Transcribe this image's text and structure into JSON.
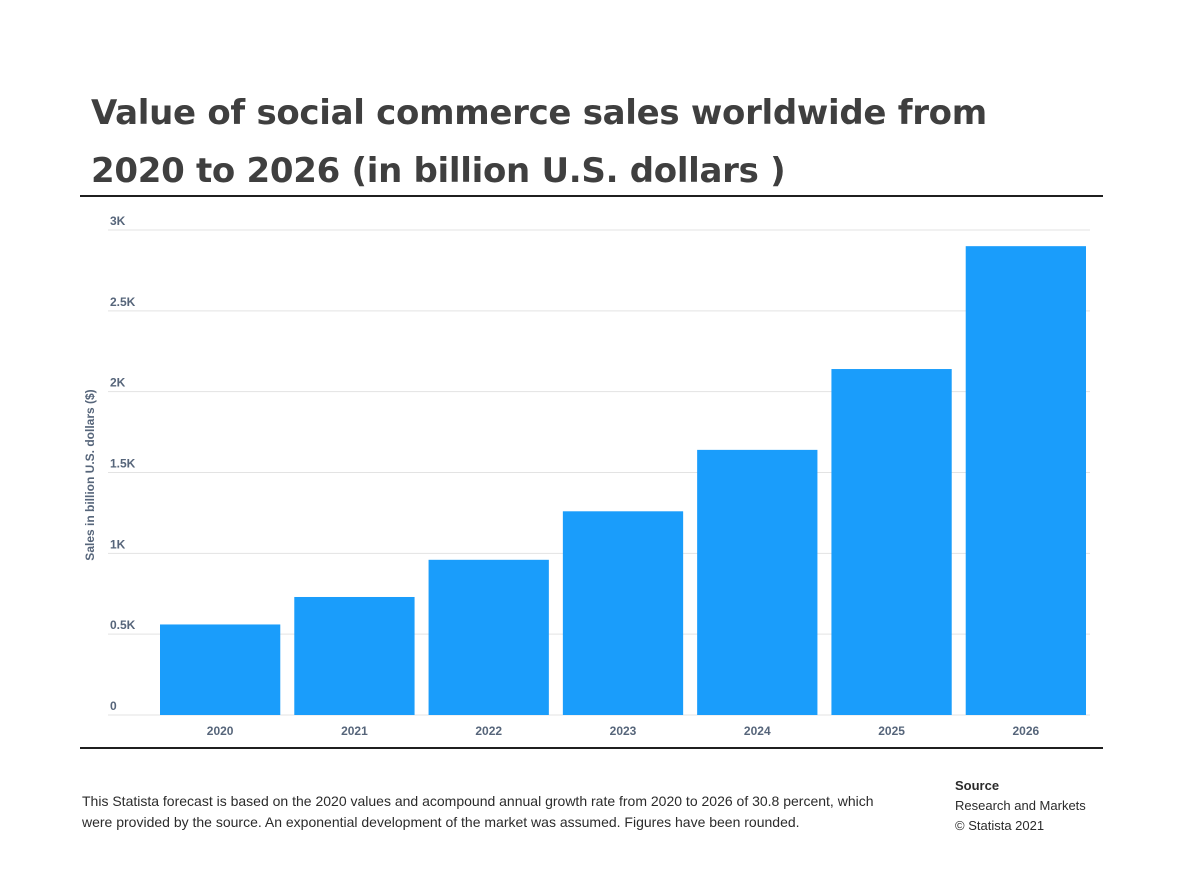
{
  "chart_data": {
    "type": "bar",
    "title": "Value of social commerce sales worldwide from 2020 to 2026 (in billion U.S. dollars )",
    "ylabel": "Sales in billion U.S. dollars ($)",
    "xlabel": "",
    "categories": [
      "2020",
      "2021",
      "2022",
      "2023",
      "2024",
      "2025",
      "2026"
    ],
    "values": [
      560,
      730,
      960,
      1260,
      1640,
      2140,
      2900
    ],
    "ylim": [
      0,
      3000
    ],
    "yticks": [
      0,
      500,
      1000,
      1500,
      2000,
      2500,
      3000
    ],
    "ytick_labels": [
      "0",
      "0.5K",
      "1K",
      "1.5K",
      "2K",
      "2.5K",
      "3K"
    ],
    "bar_color": "#1a9dfb",
    "grid": true
  },
  "footnote": "This Statista forecast is based on the 2020 values and acompound annual growth rate from 2020 to 2026 of 30.8 percent, which were provided by the source. An exponential development of the market was assumed. Figures have been rounded.",
  "source": {
    "heading": "Source",
    "name": "Research and Markets",
    "copyright": "© Statista 2021"
  }
}
